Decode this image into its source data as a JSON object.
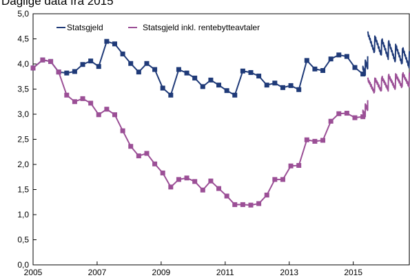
{
  "subtitle": "Daglige data fra 2015",
  "chart_data": {
    "type": "line",
    "subtitle": "Daglige data fra 2015",
    "xlim": [
      2005.0,
      2016.75
    ],
    "ylim": [
      0,
      5
    ],
    "x_ticks": [
      2005,
      2007,
      2009,
      2011,
      2013,
      2015
    ],
    "x_tick_labels": [
      "2005",
      "2007",
      "2009",
      "2011",
      "2013",
      "2015"
    ],
    "y_ticks": [
      0,
      0.5,
      1,
      1.5,
      2,
      2.5,
      3,
      3.5,
      4,
      4.5,
      5
    ],
    "y_tick_labels": [
      "0,0",
      "0,5",
      "1,0",
      "1,5",
      "2,0",
      "2,5",
      "3,0",
      "3,5",
      "4,0",
      "4,5",
      "5,0"
    ],
    "grid": false,
    "legend_position": "top-left",
    "series": [
      {
        "name": "Statsgjeld",
        "color": "#1f3a78",
        "markers": "square",
        "x": [
          2005.0,
          2005.3,
          2005.55,
          2005.8,
          2006.05,
          2006.3,
          2006.55,
          2006.8,
          2007.05,
          2007.3,
          2007.55,
          2007.8,
          2008.05,
          2008.3,
          2008.55,
          2008.8,
          2009.05,
          2009.3,
          2009.55,
          2009.8,
          2010.05,
          2010.3,
          2010.55,
          2010.8,
          2011.05,
          2011.3,
          2011.55,
          2011.8,
          2012.05,
          2012.3,
          2012.55,
          2012.8,
          2013.05,
          2013.3,
          2013.55,
          2013.8,
          2014.05,
          2014.3,
          2014.55,
          2014.8,
          2015.05,
          2015.3
        ],
        "y": [
          3.92,
          4.08,
          4.05,
          3.84,
          3.82,
          3.85,
          3.99,
          4.06,
          3.95,
          4.45,
          4.4,
          4.2,
          4.01,
          3.84,
          4.01,
          3.89,
          3.52,
          3.38,
          3.89,
          3.82,
          3.72,
          3.55,
          3.68,
          3.58,
          3.47,
          3.38,
          3.86,
          3.83,
          3.76,
          3.58,
          3.62,
          3.53,
          3.57,
          3.49,
          4.07,
          3.9,
          3.87,
          4.1,
          4.18,
          4.15,
          3.93,
          3.8
        ]
      },
      {
        "name": "Statsgjeld inkl. rentebytteavtaler",
        "color": "#9b4f96",
        "markers": "square",
        "x": [
          2005.0,
          2005.3,
          2005.55,
          2005.8,
          2006.05,
          2006.3,
          2006.55,
          2006.8,
          2007.05,
          2007.3,
          2007.55,
          2007.8,
          2008.05,
          2008.3,
          2008.55,
          2008.8,
          2009.05,
          2009.3,
          2009.55,
          2009.8,
          2010.05,
          2010.3,
          2010.55,
          2010.8,
          2011.05,
          2011.3,
          2011.55,
          2011.8,
          2012.05,
          2012.3,
          2012.55,
          2012.8,
          2013.05,
          2013.3,
          2013.55,
          2013.8,
          2014.05,
          2014.3,
          2014.55,
          2014.8,
          2015.05,
          2015.3
        ],
        "y": [
          3.92,
          4.08,
          4.05,
          3.84,
          3.38,
          3.25,
          3.31,
          3.22,
          2.99,
          3.1,
          2.99,
          2.67,
          2.36,
          2.17,
          2.22,
          2.01,
          1.83,
          1.55,
          1.7,
          1.73,
          1.66,
          1.49,
          1.67,
          1.52,
          1.37,
          1.2,
          1.2,
          1.19,
          1.22,
          1.39,
          1.7,
          1.7,
          1.97,
          1.98,
          2.49,
          2.46,
          2.48,
          2.86,
          3.01,
          3.02,
          2.93,
          2.95
        ]
      }
    ]
  }
}
